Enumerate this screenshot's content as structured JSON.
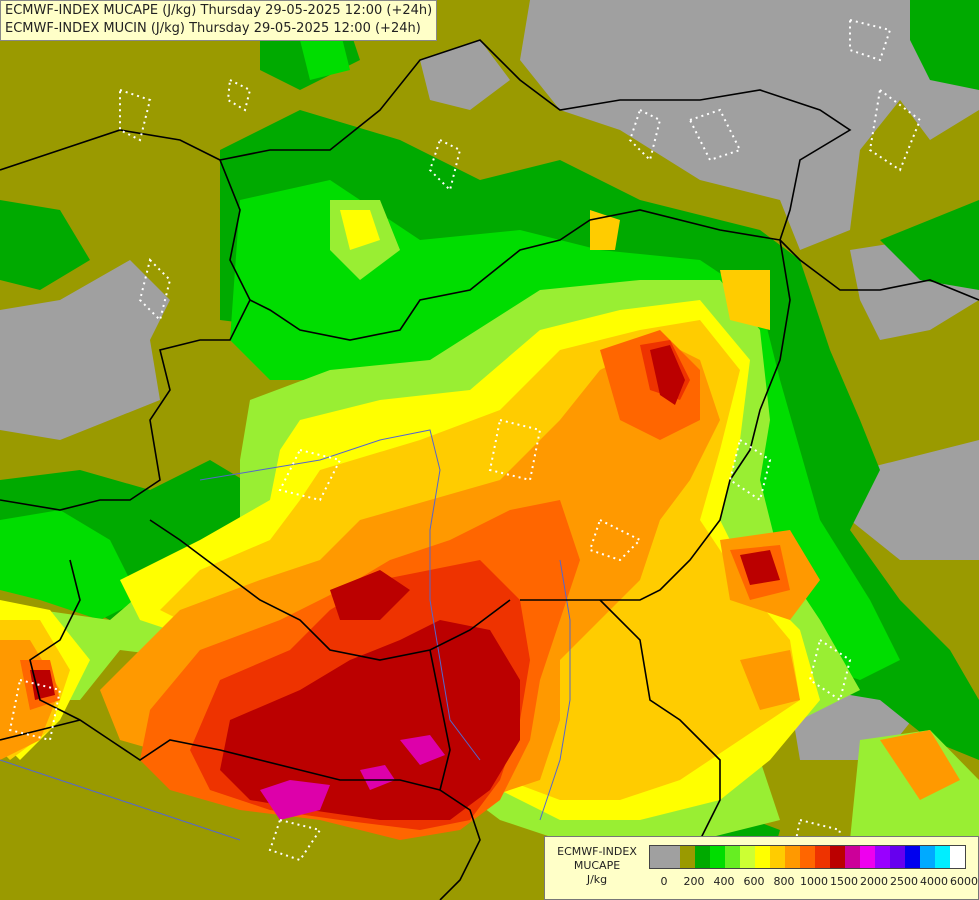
{
  "titles": {
    "line1": "ECMWF-INDEX MUCAPE (J/kg) Thursday 29-05-2025 12:00 (+24h)",
    "line2": "ECMWF-INDEX MUCIN (J/kg) Thursday 29-05-2025 12:00 (+24h)"
  },
  "legend": {
    "label1": "ECMWF-INDEX",
    "label2": "MUCAPE",
    "label3": "J/kg",
    "colors": [
      "#a0a0a0",
      "#a0a0a0",
      "#9a9a00",
      "#00aa00",
      "#00dd00",
      "#66ee22",
      "#ccff33",
      "#ffff00",
      "#ffcc00",
      "#ff9900",
      "#ff6600",
      "#ee3300",
      "#bb0000",
      "#cc0099",
      "#ee00ee",
      "#9900ff",
      "#6600ee",
      "#0000ee",
      "#00aaff",
      "#00eeff",
      "#ffffff"
    ],
    "ticks": [
      "0",
      "200",
      "400",
      "600",
      "800",
      "1000",
      "1500",
      "2000",
      "2500",
      "4000",
      "6000"
    ],
    "tick_indices": [
      1,
      3,
      5,
      7,
      9,
      11,
      13,
      15,
      17,
      19,
      21
    ]
  },
  "map_colors": {
    "gray": "#a0a0a0",
    "olive": "#9a9a00",
    "green_dark": "#00aa00",
    "green": "#00dd00",
    "lime": "#99ee33",
    "yellow": "#ffff00",
    "orange_light": "#ffcc00",
    "orange": "#ff9900",
    "orange_dark": "#ff6600",
    "red": "#ee3300",
    "dark_red": "#bb0000",
    "magenta": "#dd00aa",
    "border": "#000000",
    "river": "#5566cc"
  }
}
